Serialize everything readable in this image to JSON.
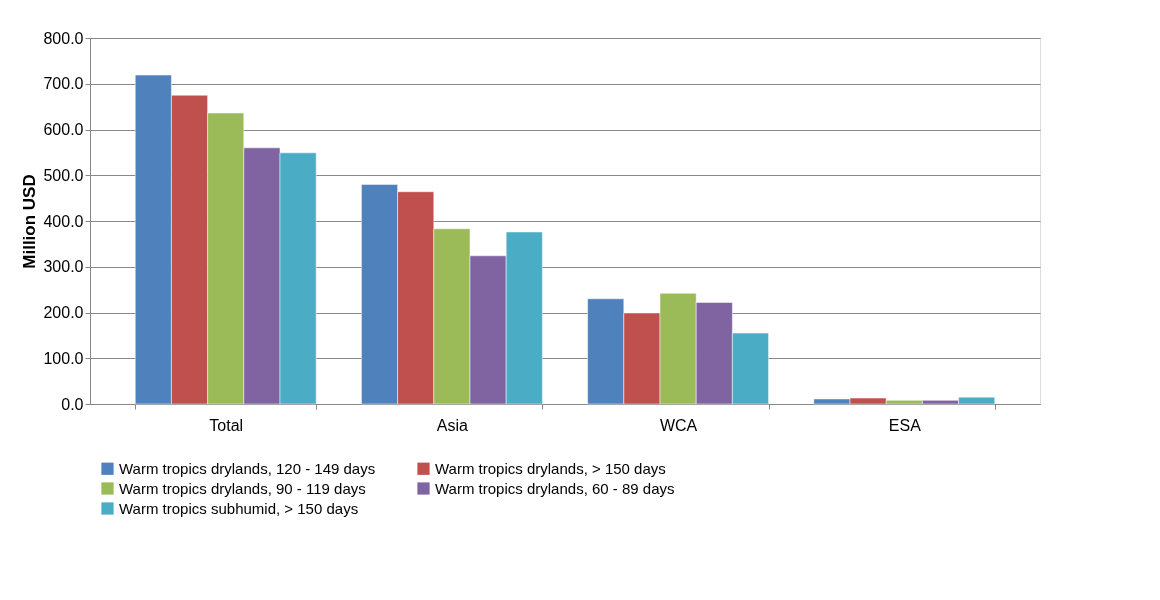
{
  "chart_data": {
    "type": "bar",
    "ylabel": "Million USD",
    "categories": [
      "Total",
      "Asia",
      "WCA",
      "ESA"
    ],
    "series": [
      {
        "name": "Warm tropics drylands, 120 - 149 days",
        "color": "#4f81bd",
        "values": [
          719,
          480,
          230,
          11
        ]
      },
      {
        "name": "Warm tropics drylands, > 150  days",
        "color": "#c0504d",
        "values": [
          675,
          464,
          199,
          13
        ]
      },
      {
        "name": "Warm tropics drylands, 90 - 119 days",
        "color": "#9bbb59",
        "values": [
          636,
          383,
          242,
          8
        ]
      },
      {
        "name": "Warm tropics drylands, 60 - 89 days",
        "color": "#8064a2",
        "values": [
          560,
          324,
          222,
          8
        ]
      },
      {
        "name": "Warm tropics subhumid, > 150  days",
        "color": "#4bacc6",
        "values": [
          549,
          376,
          155,
          15
        ]
      }
    ],
    "ylim": [
      0,
      800
    ],
    "yticks": [
      {
        "value": 0,
        "label": "0.0"
      },
      {
        "value": 100,
        "label": "100.0"
      },
      {
        "value": 200,
        "label": "200.0"
      },
      {
        "value": 300,
        "label": "300.0"
      },
      {
        "value": 400,
        "label": "400.0"
      },
      {
        "value": 500,
        "label": "500.0"
      },
      {
        "value": 600,
        "label": "600.0"
      },
      {
        "value": 700,
        "label": "700.0"
      },
      {
        "value": 800,
        "label": "800.0"
      }
    ],
    "grid": "y",
    "legend": "bottom"
  }
}
